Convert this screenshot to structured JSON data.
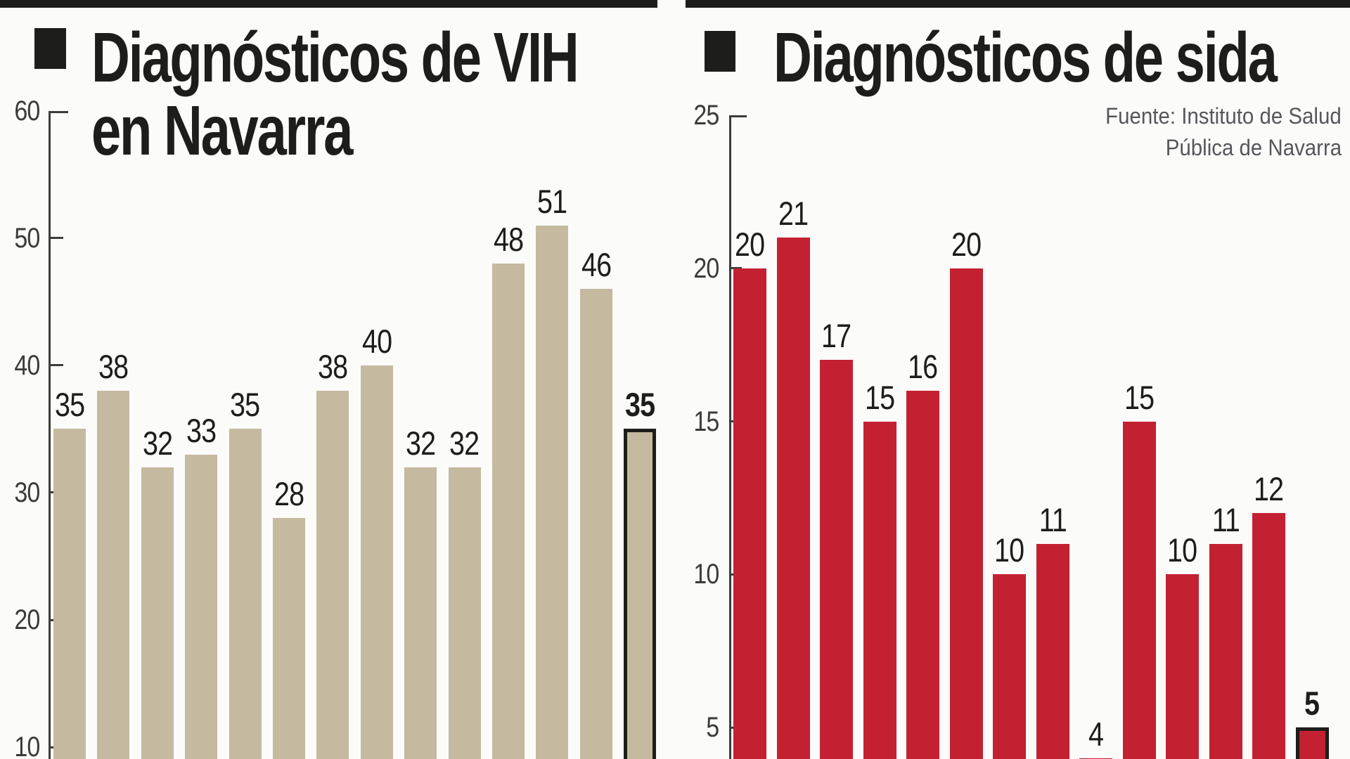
{
  "canvas": {
    "bg": "#fbfbfa",
    "rule_color": "#1d1d1b"
  },
  "source": {
    "line1": "Fuente: Instituto de Salud",
    "line2": "Pública de Navarra",
    "color": "#57565a"
  },
  "chart_data": [
    {
      "type": "bar",
      "title": "Diagnósticos de VIH en Navarra",
      "title_lines": [
        "Diagnósticos de VIH",
        "en Navarra"
      ],
      "values": [
        35,
        38,
        32,
        33,
        35,
        28,
        38,
        40,
        32,
        32,
        48,
        51,
        46,
        35
      ],
      "labels": [
        "35",
        "38",
        "32",
        "33",
        "35",
        "28",
        "38",
        "40",
        "32",
        "32",
        "48",
        "51",
        "46",
        "35"
      ],
      "highlight_last": true,
      "bar_color": "#c5b99f",
      "outline_color": "#1d1d1b",
      "yticks": [
        60,
        50,
        40,
        30,
        20,
        10
      ],
      "ylim": [
        0,
        60
      ],
      "grid": false,
      "legend": "none",
      "xlabel": "",
      "ylabel": ""
    },
    {
      "type": "bar",
      "title": "Diagnósticos de sida",
      "title_lines": [
        "Diagnósticos de sida"
      ],
      "values": [
        20,
        21,
        17,
        15,
        16,
        20,
        10,
        11,
        4,
        15,
        10,
        11,
        12,
        5
      ],
      "labels": [
        "20",
        "21",
        "17",
        "15",
        "16",
        "20",
        "10",
        "11",
        "4",
        "15",
        "10",
        "11",
        "12",
        "5"
      ],
      "highlight_last": true,
      "bar_color": "#c32132",
      "outline_color": "#1d1d1b",
      "yticks": [
        25,
        20,
        15,
        10,
        5
      ],
      "ylim": [
        0,
        25
      ],
      "grid": false,
      "legend": "none",
      "xlabel": "",
      "ylabel": ""
    }
  ]
}
